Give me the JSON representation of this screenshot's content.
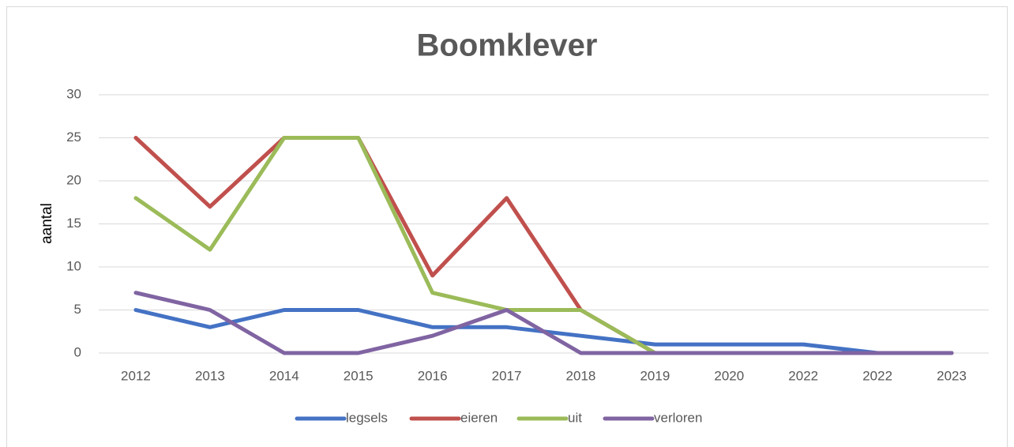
{
  "chart_data": {
    "type": "line",
    "title": "Boomklever",
    "y_label": "aantal",
    "categories": [
      "2012",
      "2013",
      "2014",
      "2015",
      "2016",
      "2017",
      "2018",
      "2019",
      "2020",
      "2022",
      "2022",
      "2023"
    ],
    "series": [
      {
        "name": "legsels",
        "color": "#4472c4",
        "values": [
          5,
          3,
          5,
          5,
          3,
          3,
          2,
          1,
          1,
          1,
          0,
          0
        ]
      },
      {
        "name": "eieren",
        "color": "#c0504d",
        "values": [
          25,
          17,
          25,
          25,
          9,
          18,
          5,
          0,
          0,
          0,
          0,
          0
        ]
      },
      {
        "name": "uit",
        "color": "#9bbb59",
        "values": [
          18,
          12,
          25,
          25,
          7,
          5,
          5,
          0,
          0,
          0,
          0,
          0
        ]
      },
      {
        "name": "verloren",
        "color": "#8064a2",
        "values": [
          7,
          5,
          0,
          0,
          2,
          5,
          0,
          0,
          0,
          0,
          0,
          0
        ]
      }
    ],
    "ylim": [
      0,
      30
    ],
    "yticks": [
      0,
      5,
      10,
      15,
      20,
      25,
      30
    ],
    "grid": true,
    "legend": "bottom"
  }
}
